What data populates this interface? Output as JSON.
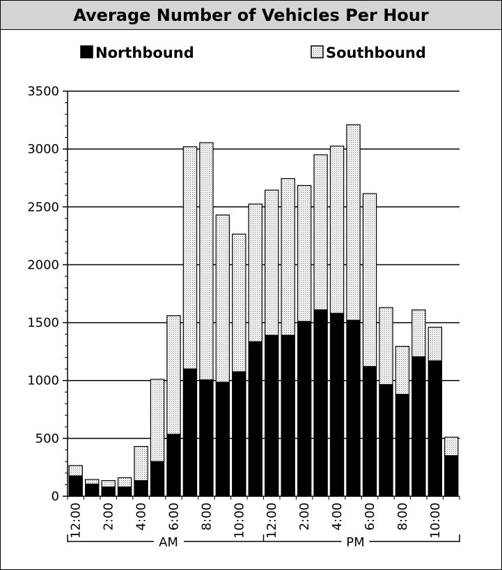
{
  "chart_data": {
    "type": "bar",
    "stacked": true,
    "title": "Average Number of Vehicles Per Hour",
    "xlabel": "",
    "ylabel": "",
    "ylim": [
      0,
      3500
    ],
    "yticks": [
      "0",
      "500",
      "1000",
      "1500",
      "2000",
      "2500",
      "3000",
      "3500"
    ],
    "x_tick_labels": [
      "12:00",
      "2:00",
      "4:00",
      "6:00",
      "8:00",
      "10:00",
      "12:00",
      "2:00",
      "4:00",
      "6:00",
      "8:00",
      "10:00"
    ],
    "period_labels": [
      "AM",
      "PM"
    ],
    "grid": true,
    "legend_position": "top",
    "categories": [
      "12AM",
      "1AM",
      "2AM",
      "3AM",
      "4AM",
      "5AM",
      "6AM",
      "7AM",
      "8AM",
      "9AM",
      "10AM",
      "11AM",
      "12PM",
      "1PM",
      "2PM",
      "3PM",
      "4PM",
      "5PM",
      "6PM",
      "7PM",
      "8PM",
      "9PM",
      "10PM",
      "11PM"
    ],
    "series": [
      {
        "name": "Northbound",
        "color": "#000000",
        "pattern": "solid",
        "values": [
          175,
          105,
          80,
          80,
          135,
          300,
          535,
          1100,
          1005,
          985,
          1075,
          1335,
          1390,
          1390,
          1510,
          1610,
          1580,
          1520,
          1120,
          965,
          880,
          1205,
          1170,
          350
        ]
      },
      {
        "name": "Southbound",
        "color": "#d8d8d8",
        "pattern": "dotted",
        "values": [
          90,
          40,
          55,
          80,
          295,
          710,
          1025,
          1920,
          2050,
          1445,
          1190,
          1190,
          1255,
          1355,
          1175,
          1340,
          1445,
          1690,
          1495,
          665,
          415,
          405,
          290,
          160
        ]
      }
    ]
  }
}
